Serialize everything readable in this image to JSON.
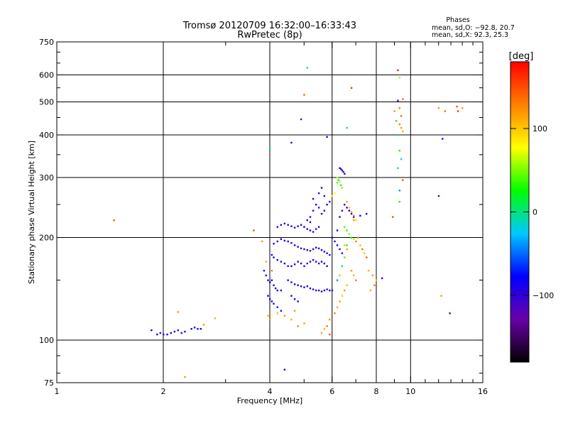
{
  "chart_data": {
    "type": "scatter",
    "title": "Tromsø 20120709 16:32:00–16:33:43",
    "subtitle": "RwPretec (8p)",
    "xlabel": "Frequency [MHz]",
    "ylabel": "Stationary phase Virtual Height [km]",
    "x_scale": "log",
    "y_scale": "log",
    "xlim": [
      1,
      16
    ],
    "ylim": [
      75,
      750
    ],
    "x_ticks": [
      1,
      2,
      4,
      6,
      8,
      10,
      16
    ],
    "x_tick_labels": [
      "1",
      "2",
      "4",
      "6",
      "8",
      "10",
      "16"
    ],
    "x_minor_ticks": [
      3,
      5,
      7,
      9,
      11,
      12,
      13,
      14,
      15
    ],
    "y_ticks": [
      75,
      100,
      200,
      300,
      400,
      500,
      600,
      750
    ],
    "y_tick_labels": [
      "75",
      "100",
      "200",
      "300",
      "400",
      "500",
      "600",
      "750"
    ],
    "grid": true,
    "color_variable": "phase [deg]",
    "colorbar": {
      "label": "[deg]",
      "ticks": [
        100,
        0,
        -100
      ],
      "tick_labels": [
        "100",
        "0",
        "−100"
      ],
      "range": [
        -180,
        180
      ],
      "colors": [
        "#000000",
        "#6a00a8",
        "#0000ff",
        "#00c8ff",
        "#00ff00",
        "#ffff00",
        "#ff8000",
        "#ff0000"
      ]
    },
    "stats": {
      "heading": "Phases",
      "line1": "mean, sd,O: −92.8, 20.7",
      "line2": "mean, sd,X:  92.3, 25.3"
    },
    "points": [
      [
        1.85,
        107,
        -90
      ],
      [
        1.92,
        104,
        -90
      ],
      [
        1.96,
        105,
        -95
      ],
      [
        2.0,
        104,
        -100
      ],
      [
        2.05,
        104,
        -85
      ],
      [
        2.1,
        105,
        -80
      ],
      [
        2.15,
        106,
        -90
      ],
      [
        2.2,
        107,
        -70
      ],
      [
        2.25,
        105,
        -100
      ],
      [
        2.3,
        106,
        -90
      ],
      [
        2.4,
        108,
        -85
      ],
      [
        2.45,
        109,
        -80
      ],
      [
        2.5,
        108,
        -95
      ],
      [
        2.55,
        108,
        -90
      ],
      [
        2.2,
        121,
        120
      ],
      [
        2.3,
        78,
        120
      ],
      [
        2.8,
        116,
        110
      ],
      [
        2.6,
        111,
        120
      ],
      [
        1.45,
        225,
        150
      ],
      [
        3.6,
        210,
        150
      ],
      [
        3.8,
        195,
        120
      ],
      [
        3.9,
        170,
        110
      ],
      [
        4.0,
        115,
        120
      ],
      [
        4.05,
        160,
        130
      ],
      [
        3.85,
        160,
        -90
      ],
      [
        3.9,
        155,
        -95
      ],
      [
        3.95,
        150,
        -100
      ],
      [
        4.0,
        148,
        -90
      ],
      [
        4.05,
        150,
        -85
      ],
      [
        4.1,
        145,
        -95
      ],
      [
        4.15,
        142,
        -100
      ],
      [
        4.2,
        140,
        -90
      ],
      [
        4.3,
        140,
        -85
      ],
      [
        3.95,
        135,
        -80
      ],
      [
        4.0,
        132,
        -100
      ],
      [
        4.05,
        130,
        -95
      ],
      [
        4.1,
        128,
        -90
      ],
      [
        4.2,
        125,
        -80
      ],
      [
        4.3,
        122,
        -95
      ],
      [
        4.05,
        178,
        -90
      ],
      [
        4.1,
        175,
        -95
      ],
      [
        4.2,
        172,
        -85
      ],
      [
        4.3,
        170,
        -100
      ],
      [
        4.4,
        168,
        -90
      ],
      [
        4.5,
        165,
        -95
      ],
      [
        4.6,
        165,
        -80
      ],
      [
        4.7,
        167,
        -90
      ],
      [
        4.8,
        170,
        -85
      ],
      [
        4.9,
        168,
        -95
      ],
      [
        5.0,
        165,
        -100
      ],
      [
        5.1,
        168,
        -90
      ],
      [
        5.2,
        170,
        -85
      ],
      [
        5.3,
        172,
        -95
      ],
      [
        5.4,
        170,
        -90
      ],
      [
        5.5,
        168,
        -100
      ],
      [
        5.6,
        170,
        -85
      ],
      [
        5.7,
        168,
        -90
      ],
      [
        5.8,
        165,
        -95
      ],
      [
        4.1,
        192,
        -90
      ],
      [
        4.2,
        195,
        -100
      ],
      [
        4.3,
        198,
        -85
      ],
      [
        4.4,
        196,
        -95
      ],
      [
        4.5,
        195,
        -90
      ],
      [
        4.6,
        193,
        -100
      ],
      [
        4.7,
        190,
        -85
      ],
      [
        4.8,
        188,
        -95
      ],
      [
        4.9,
        186,
        -90
      ],
      [
        5.0,
        185,
        -100
      ],
      [
        5.1,
        184,
        -85
      ],
      [
        5.2,
        183,
        -95
      ],
      [
        5.3,
        185,
        -90
      ],
      [
        5.4,
        187,
        -100
      ],
      [
        5.5,
        186,
        -85
      ],
      [
        5.6,
        184,
        -90
      ],
      [
        5.7,
        182,
        -95
      ],
      [
        5.8,
        180,
        -100
      ],
      [
        5.9,
        178,
        -85
      ],
      [
        4.2,
        215,
        -90
      ],
      [
        4.3,
        218,
        -100
      ],
      [
        4.4,
        220,
        -85
      ],
      [
        4.5,
        218,
        -95
      ],
      [
        4.6,
        216,
        -90
      ],
      [
        4.7,
        214,
        -100
      ],
      [
        4.8,
        216,
        -85
      ],
      [
        4.9,
        218,
        -95
      ],
      [
        5.0,
        215,
        -90
      ],
      [
        5.1,
        212,
        -100
      ],
      [
        5.2,
        210,
        -85
      ],
      [
        5.3,
        208,
        -95
      ],
      [
        5.4,
        212,
        -90
      ],
      [
        5.5,
        215,
        -100
      ],
      [
        4.5,
        150,
        -90
      ],
      [
        4.6,
        148,
        -100
      ],
      [
        4.7,
        146,
        -85
      ],
      [
        4.8,
        145,
        -95
      ],
      [
        4.9,
        144,
        -90
      ],
      [
        5.0,
        143,
        -100
      ],
      [
        5.1,
        144,
        -85
      ],
      [
        5.2,
        142,
        -95
      ],
      [
        5.3,
        141,
        -90
      ],
      [
        5.4,
        140,
        -100
      ],
      [
        5.5,
        140,
        -85
      ],
      [
        5.6,
        139,
        -95
      ],
      [
        5.7,
        140,
        -90
      ],
      [
        5.8,
        141,
        -100
      ],
      [
        5.9,
        140,
        -85
      ],
      [
        6.0,
        140,
        -95
      ],
      [
        4.6,
        135,
        -90
      ],
      [
        4.7,
        132,
        -100
      ],
      [
        4.8,
        130,
        -85
      ],
      [
        5.2,
        230,
        -90
      ],
      [
        5.3,
        240,
        -100
      ],
      [
        5.4,
        250,
        -85
      ],
      [
        5.5,
        245,
        -95
      ],
      [
        5.6,
        235,
        -90
      ],
      [
        5.7,
        240,
        -100
      ],
      [
        5.8,
        250,
        -85
      ],
      [
        5.9,
        255,
        -95
      ],
      [
        5.3,
        260,
        -90
      ],
      [
        5.5,
        270,
        -100
      ],
      [
        5.6,
        280,
        -85
      ],
      [
        5.7,
        265,
        -95
      ],
      [
        5.2,
        222,
        -90
      ],
      [
        5.1,
        225,
        -100
      ],
      [
        6.0,
        200,
        -90
      ],
      [
        6.1,
        195,
        -95
      ],
      [
        6.2,
        190,
        -85
      ],
      [
        6.3,
        185,
        -100
      ],
      [
        6.4,
        180,
        -90
      ],
      [
        6.5,
        190,
        100
      ],
      [
        6.6,
        185,
        120
      ],
      [
        6.2,
        210,
        -85
      ],
      [
        6.3,
        230,
        -90
      ],
      [
        6.4,
        240,
        -100
      ],
      [
        6.5,
        250,
        -95
      ],
      [
        6.6,
        245,
        -90
      ],
      [
        6.7,
        240,
        -85
      ],
      [
        6.8,
        235,
        -100
      ],
      [
        6.9,
        230,
        -90
      ],
      [
        6.3,
        320,
        -90
      ],
      [
        6.35,
        318,
        -100
      ],
      [
        6.4,
        315,
        -85
      ],
      [
        6.45,
        312,
        -95
      ],
      [
        6.5,
        308,
        -90
      ],
      [
        6.2,
        290,
        40
      ],
      [
        6.25,
        295,
        20
      ],
      [
        6.3,
        292,
        60
      ],
      [
        6.35,
        285,
        30
      ],
      [
        6.4,
        280,
        50
      ],
      [
        6.1,
        270,
        80
      ],
      [
        6.0,
        265,
        90
      ],
      [
        6.2,
        300,
        70
      ],
      [
        6.6,
        255,
        120
      ],
      [
        6.7,
        245,
        100
      ],
      [
        6.8,
        238,
        110
      ],
      [
        6.9,
        232,
        130
      ],
      [
        7.0,
        225,
        90
      ],
      [
        6.5,
        215,
        40
      ],
      [
        6.6,
        210,
        30
      ],
      [
        6.7,
        205,
        50
      ],
      [
        6.8,
        200,
        20
      ],
      [
        6.9,
        198,
        60
      ],
      [
        7.0,
        195,
        130
      ],
      [
        7.1,
        200,
        120
      ],
      [
        7.2,
        190,
        110
      ],
      [
        7.3,
        185,
        140
      ],
      [
        7.4,
        180,
        100
      ],
      [
        7.5,
        175,
        150
      ],
      [
        6.8,
        160,
        120
      ],
      [
        6.9,
        155,
        110
      ],
      [
        7.0,
        150,
        130
      ],
      [
        6.6,
        145,
        110
      ],
      [
        6.5,
        140,
        120
      ],
      [
        6.4,
        135,
        100
      ],
      [
        6.3,
        130,
        120
      ],
      [
        6.2,
        125,
        110
      ],
      [
        6.1,
        120,
        130
      ],
      [
        5.9,
        115,
        120
      ],
      [
        5.8,
        110,
        130
      ],
      [
        5.7,
        108,
        110
      ],
      [
        5.9,
        104,
        150
      ],
      [
        5.6,
        105,
        120
      ],
      [
        5.0,
        112,
        120
      ],
      [
        4.8,
        110,
        130
      ],
      [
        4.6,
        115,
        110
      ],
      [
        4.4,
        118,
        120
      ],
      [
        4.2,
        120,
        110
      ],
      [
        4.0,
        122,
        130
      ],
      [
        3.95,
        118,
        110
      ],
      [
        4.7,
        122,
        120
      ],
      [
        7.6,
        160,
        110
      ],
      [
        7.8,
        155,
        120
      ],
      [
        8.0,
        150,
        100
      ],
      [
        7.9,
        145,
        130
      ],
      [
        7.7,
        140,
        110
      ],
      [
        8.3,
        152,
        -90
      ],
      [
        7.5,
        235,
        -90
      ],
      [
        7.2,
        232,
        -85
      ],
      [
        6.9,
        225,
        120
      ],
      [
        6.6,
        190,
        20
      ],
      [
        6.5,
        175,
        40
      ],
      [
        6.4,
        165,
        10
      ],
      [
        6.3,
        155,
        50
      ],
      [
        6.2,
        150,
        -40
      ],
      [
        5.1,
        630,
        -10
      ],
      [
        5.0,
        525,
        140
      ],
      [
        4.9,
        445,
        -120
      ],
      [
        4.6,
        380,
        -100
      ],
      [
        4.0,
        365,
        10
      ],
      [
        5.8,
        395,
        -90
      ],
      [
        6.8,
        550,
        160
      ],
      [
        6.6,
        420,
        -10
      ],
      [
        4.4,
        82,
        -100
      ],
      [
        9.2,
        620,
        170
      ],
      [
        9.3,
        590,
        60
      ],
      [
        9.5,
        510,
        140
      ],
      [
        9.2,
        505,
        -110
      ],
      [
        9.3,
        480,
        130
      ],
      [
        9.0,
        470,
        120
      ],
      [
        9.4,
        455,
        140
      ],
      [
        9.1,
        440,
        10
      ],
      [
        9.3,
        430,
        130
      ],
      [
        9.4,
        420,
        120
      ],
      [
        9.5,
        410,
        110
      ],
      [
        9.2,
        400,
        -10
      ],
      [
        9.3,
        360,
        20
      ],
      [
        9.4,
        340,
        -20
      ],
      [
        9.5,
        295,
        150
      ],
      [
        9.3,
        275,
        -40
      ],
      [
        9.3,
        255,
        30
      ],
      [
        8.9,
        230,
        150
      ],
      [
        9.2,
        320,
        10
      ],
      [
        12.0,
        480,
        120
      ],
      [
        12.5,
        470,
        140
      ],
      [
        13.5,
        485,
        150
      ],
      [
        13.6,
        470,
        160
      ],
      [
        14.0,
        480,
        120
      ],
      [
        12.3,
        390,
        -100
      ],
      [
        12.0,
        265,
        -100
      ],
      [
        12.2,
        135,
        120
      ],
      [
        12.9,
        120,
        -120
      ]
    ]
  }
}
